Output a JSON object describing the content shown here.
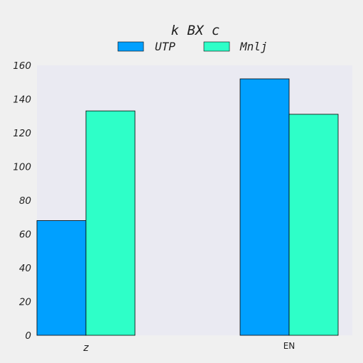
{
  "chart_data": {
    "type": "bar",
    "title": "k BX c",
    "categories": [
      "z",
      "EN"
    ],
    "series": [
      {
        "name": "UTP",
        "values": [
          68,
          152
        ],
        "color": "#00a0ff"
      },
      {
        "name": "Mnlj",
        "values": [
          133,
          131
        ],
        "color": "#2effc8"
      }
    ],
    "ylim": [
      0,
      160
    ],
    "yticks": [
      0,
      20,
      40,
      60,
      80,
      100,
      120,
      140,
      160
    ],
    "xlabel": "",
    "ylabel": "",
    "grid": false,
    "legend_position": "top-center",
    "plot_background": "#eaeaf2",
    "figure_background": "#f0f0f0"
  }
}
